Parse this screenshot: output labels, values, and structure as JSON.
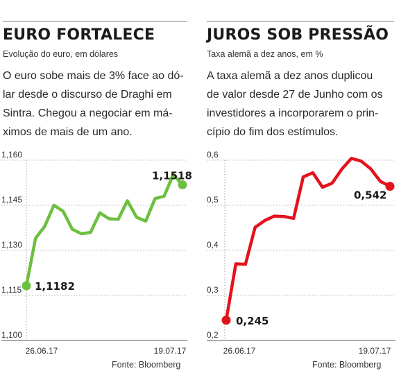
{
  "charts": [
    {
      "title": "EURO FORTALECE",
      "subtitle": "Evolução do euro, em dólares",
      "description": [
        "O euro sobe mais de 3% face ao dó-",
        "lar desde o discurso de Draghi em",
        "Sintra. Chegou a negociar em má-",
        "ximos de mais de um ano."
      ],
      "source": "Fonte: Bloomberg"
    },
    {
      "title": "JUROS SOB PRESSÃO",
      "subtitle": "Taxa alemã a dez anos, em %",
      "description": [
        "A taxa alemã a dez anos duplicou",
        "de valor desde 27 de Junho com os",
        "investidores a incorporarem o prin-",
        "cípio do fim dos estímulos."
      ],
      "source": "Fonte: Bloomberg"
    }
  ],
  "chart_data": [
    {
      "type": "line",
      "title": "EURO FORTALECE",
      "subtitle": "Evolução do euro, em dólares",
      "xlabel": "",
      "ylabel": "",
      "x_tick_labels": [
        "26.06.17",
        "19.07.17"
      ],
      "y_ticks": [
        "1,160",
        "1,145",
        "1,130",
        "1,115",
        "1,100"
      ],
      "ylim": [
        1.1,
        1.16
      ],
      "grid": true,
      "color": "#6cbf3f",
      "series": [
        {
          "values": [
            1.1182,
            1.134,
            1.138,
            1.145,
            1.143,
            1.137,
            1.1355,
            1.136,
            1.1425,
            1.1405,
            1.1403,
            1.1465,
            1.141,
            1.1397,
            1.1472,
            1.148,
            1.1552,
            1.1518
          ]
        }
      ],
      "annotations": [
        {
          "index": 0,
          "text": "1,1182"
        },
        {
          "index": 17,
          "text": "1,1518"
        }
      ]
    },
    {
      "type": "line",
      "title": "JUROS SOB PRESSÃO",
      "subtitle": "Taxa alemã a dez anos, em %",
      "xlabel": "",
      "ylabel": "",
      "x_tick_labels": [
        "26.06.17",
        "19.07.17"
      ],
      "y_ticks": [
        "0,6",
        "0,5",
        "0,4",
        "0,3",
        "0,2"
      ],
      "ylim": [
        0.2,
        0.6
      ],
      "grid": true,
      "color": "#e3121b",
      "series": [
        {
          "values": [
            0.245,
            0.37,
            0.369,
            0.451,
            0.466,
            0.476,
            0.475,
            0.471,
            0.563,
            0.572,
            0.54,
            0.549,
            0.58,
            0.604,
            0.598,
            0.581,
            0.553,
            0.542
          ]
        }
      ],
      "annotations": [
        {
          "index": 0,
          "text": "0,245"
        },
        {
          "index": 17,
          "text": "0,542"
        }
      ]
    }
  ]
}
